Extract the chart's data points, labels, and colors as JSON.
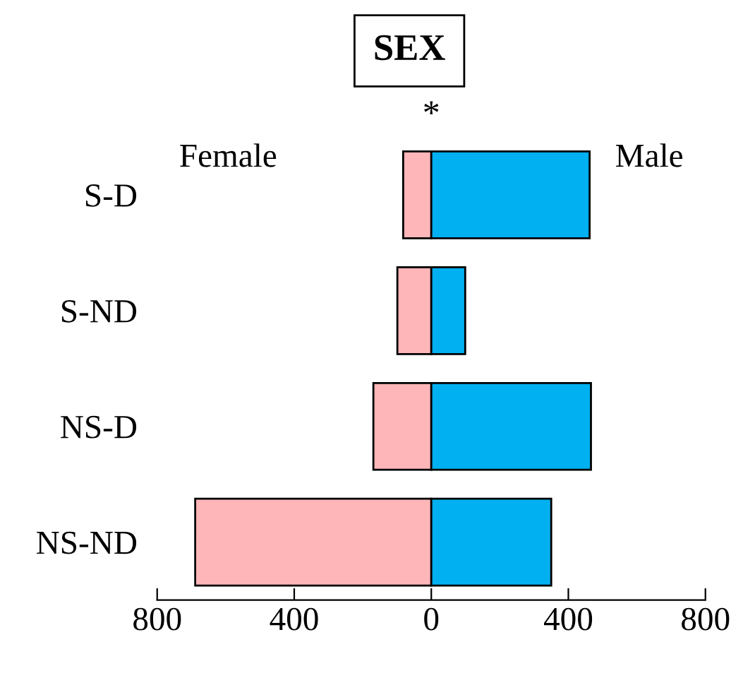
{
  "chart_data": {
    "type": "bar",
    "orientation": "horizontal",
    "title": "SEX",
    "categories": [
      "S-D",
      "S-ND",
      "NS-D",
      "NS-ND"
    ],
    "series": [
      {
        "name": "Female",
        "color": "#ffb6b9",
        "values": [
          -82,
          -99,
          -169,
          -689
        ]
      },
      {
        "name": "Male",
        "color": "#00b0f0",
        "values": [
          462,
          99,
          466,
          350
        ]
      }
    ],
    "xlim": [
      -800,
      800
    ],
    "xticks": [
      {
        "value": -800,
        "label": "800"
      },
      {
        "value": -400,
        "label": "400"
      },
      0,
      400,
      800
    ],
    "annotations": [
      "*"
    ],
    "stacked": true,
    "grid": false,
    "legend": false
  }
}
